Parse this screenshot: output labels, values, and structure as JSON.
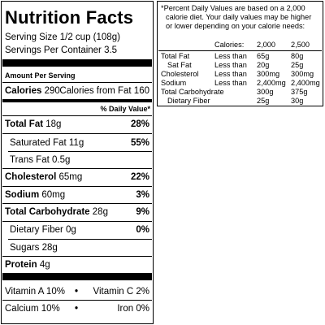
{
  "label": {
    "title": "Nutrition Facts",
    "serving_size": "Serving Size 1/2 cup (108g)",
    "servings_per_container": "Servings Per Container 3.5",
    "amount_per_serving": "Amount Per Serving",
    "calories_label": "Calories",
    "calories_value": "290",
    "calories_from_fat": "Calories from Fat 160",
    "daily_value_header": "% Daily Value*",
    "rows": [
      {
        "name": "Total Fat",
        "amount": "18g",
        "pct": "28%"
      },
      {
        "name": "Saturated Fat",
        "amount": "11g",
        "pct": "55%"
      },
      {
        "name": "Trans Fat",
        "amount": "0.5g",
        "pct": ""
      },
      {
        "name": "Cholesterol",
        "amount": "65mg",
        "pct": "22%"
      },
      {
        "name": "Sodium",
        "amount": "60mg",
        "pct": "3%"
      },
      {
        "name": "Total Carbohydrate",
        "amount": "28g",
        "pct": "9%"
      },
      {
        "name": "Dietary Fiber",
        "amount": "0g",
        "pct": "0%"
      },
      {
        "name": "Sugars",
        "amount": "28g",
        "pct": ""
      },
      {
        "name": "Protein",
        "amount": "4g",
        "pct": ""
      }
    ],
    "vitamins": {
      "vitamin_a": "Vitamin A 10%",
      "vitamin_c": "Vitamin C 2%",
      "calcium": "Calcium 10%",
      "iron": "Iron 0%",
      "bullet": "•"
    }
  },
  "footnote": {
    "line1": "*Percent Daily Values are based on a 2,000",
    "line2": "calorie diet. Your daily values may be higher",
    "line3": "or lower depending on your calorie needs:",
    "header": {
      "calories": "Calories:",
      "col1": "2,000",
      "col2": "2,500"
    },
    "rows": [
      {
        "name": "Total Fat",
        "qual": "Less than",
        "v1": "65g",
        "v2": "80g"
      },
      {
        "name": "Sat Fat",
        "qual": "Less than",
        "v1": "20g",
        "v2": "25g"
      },
      {
        "name": "Cholesterol",
        "qual": "Less than",
        "v1": "300mg",
        "v2": "300mg"
      },
      {
        "name": "Sodium",
        "qual": "Less than",
        "v1": "2,400mg",
        "v2": "2,400mg"
      },
      {
        "name": "Total Carbohydrate",
        "qual": "",
        "v1": "300g",
        "v2": "375g"
      },
      {
        "name": "Dietary Fiber",
        "qual": "",
        "v1": "25g",
        "v2": "30g"
      }
    ]
  }
}
